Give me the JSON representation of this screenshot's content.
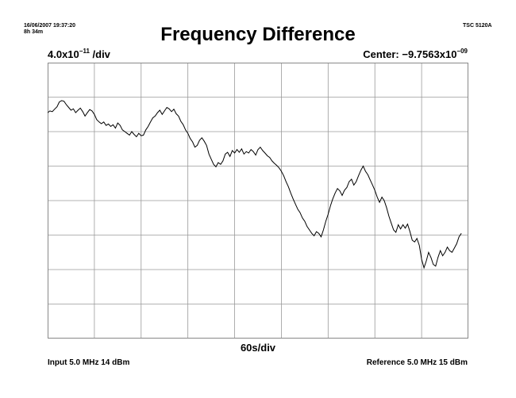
{
  "header": {
    "timestamp": "16/06/2007 19:37:20",
    "elapsed": "8h 34m",
    "instrument": "TSC 5120A",
    "title": "Frequency Difference"
  },
  "scale": {
    "per_div_mantissa": "4.0x10",
    "per_div_exponent": "−11",
    "per_div_unit": " /div",
    "center_prefix": "Center: ",
    "center_mantissa": "−9.7563x10",
    "center_exponent": "−09"
  },
  "footer": {
    "x_scale": "60s/div",
    "input": "Input 5.0 MHz 14 dBm",
    "reference": "Reference 5.0 MHz 15 dBm"
  },
  "chart_data": {
    "type": "line",
    "title": "Frequency Difference",
    "x_unit": "s",
    "x_per_div": 60,
    "x_divisions": 9,
    "xlim": [
      0,
      540
    ],
    "y_per_div": 4e-11,
    "y_center": -9.7563e-09,
    "y_divisions": 8,
    "grid": true,
    "series": [
      {
        "values_y_div": [
          [
            0,
            2.55
          ],
          [
            3,
            2.6
          ],
          [
            6,
            2.58
          ],
          [
            9,
            2.65
          ],
          [
            12,
            2.72
          ],
          [
            15,
            2.86
          ],
          [
            18,
            2.9
          ],
          [
            21,
            2.88
          ],
          [
            24,
            2.78
          ],
          [
            27,
            2.7
          ],
          [
            30,
            2.62
          ],
          [
            33,
            2.66
          ],
          [
            36,
            2.55
          ],
          [
            39,
            2.62
          ],
          [
            42,
            2.68
          ],
          [
            45,
            2.58
          ],
          [
            48,
            2.45
          ],
          [
            51,
            2.55
          ],
          [
            54,
            2.64
          ],
          [
            57,
            2.6
          ],
          [
            60,
            2.5
          ],
          [
            63,
            2.35
          ],
          [
            66,
            2.28
          ],
          [
            69,
            2.23
          ],
          [
            72,
            2.28
          ],
          [
            75,
            2.18
          ],
          [
            78,
            2.22
          ],
          [
            81,
            2.15
          ],
          [
            84,
            2.2
          ],
          [
            87,
            2.1
          ],
          [
            90,
            2.25
          ],
          [
            93,
            2.18
          ],
          [
            96,
            2.05
          ],
          [
            99,
            2.0
          ],
          [
            102,
            1.95
          ],
          [
            105,
            1.9
          ],
          [
            108,
            2.0
          ],
          [
            111,
            1.92
          ],
          [
            114,
            1.85
          ],
          [
            117,
            1.95
          ],
          [
            120,
            1.88
          ],
          [
            123,
            1.9
          ],
          [
            126,
            2.05
          ],
          [
            129,
            2.15
          ],
          [
            132,
            2.28
          ],
          [
            135,
            2.4
          ],
          [
            138,
            2.45
          ],
          [
            141,
            2.55
          ],
          [
            144,
            2.62
          ],
          [
            147,
            2.5
          ],
          [
            150,
            2.6
          ],
          [
            153,
            2.7
          ],
          [
            156,
            2.66
          ],
          [
            159,
            2.58
          ],
          [
            162,
            2.65
          ],
          [
            165,
            2.52
          ],
          [
            168,
            2.45
          ],
          [
            171,
            2.3
          ],
          [
            174,
            2.2
          ],
          [
            177,
            2.05
          ],
          [
            180,
            1.95
          ],
          [
            183,
            1.8
          ],
          [
            186,
            1.7
          ],
          [
            189,
            1.55
          ],
          [
            192,
            1.6
          ],
          [
            195,
            1.75
          ],
          [
            198,
            1.82
          ],
          [
            201,
            1.72
          ],
          [
            204,
            1.6
          ],
          [
            207,
            1.35
          ],
          [
            210,
            1.2
          ],
          [
            213,
            1.05
          ],
          [
            216,
            0.98
          ],
          [
            219,
            1.1
          ],
          [
            222,
            1.05
          ],
          [
            225,
            1.15
          ],
          [
            228,
            1.35
          ],
          [
            231,
            1.4
          ],
          [
            234,
            1.28
          ],
          [
            237,
            1.45
          ],
          [
            240,
            1.38
          ],
          [
            243,
            1.48
          ],
          [
            246,
            1.4
          ],
          [
            249,
            1.5
          ],
          [
            252,
            1.35
          ],
          [
            255,
            1.42
          ],
          [
            258,
            1.38
          ],
          [
            261,
            1.48
          ],
          [
            264,
            1.42
          ],
          [
            267,
            1.32
          ],
          [
            270,
            1.48
          ],
          [
            273,
            1.55
          ],
          [
            276,
            1.45
          ],
          [
            279,
            1.38
          ],
          [
            282,
            1.3
          ],
          [
            285,
            1.25
          ],
          [
            288,
            1.15
          ],
          [
            291,
            1.08
          ],
          [
            294,
            1.02
          ],
          [
            297,
            0.95
          ],
          [
            300,
            0.85
          ],
          [
            303,
            0.72
          ],
          [
            306,
            0.55
          ],
          [
            309,
            0.4
          ],
          [
            312,
            0.22
          ],
          [
            315,
            0.05
          ],
          [
            318,
            -0.1
          ],
          [
            321,
            -0.25
          ],
          [
            324,
            -0.35
          ],
          [
            327,
            -0.5
          ],
          [
            330,
            -0.6
          ],
          [
            333,
            -0.75
          ],
          [
            336,
            -0.85
          ],
          [
            339,
            -0.95
          ],
          [
            342,
            -1.02
          ],
          [
            345,
            -0.9
          ],
          [
            348,
            -0.95
          ],
          [
            351,
            -1.05
          ],
          [
            354,
            -0.85
          ],
          [
            357,
            -0.6
          ],
          [
            360,
            -0.4
          ],
          [
            363,
            -0.15
          ],
          [
            366,
            0.05
          ],
          [
            369,
            0.22
          ],
          [
            372,
            0.35
          ],
          [
            375,
            0.28
          ],
          [
            378,
            0.15
          ],
          [
            381,
            0.3
          ],
          [
            384,
            0.38
          ],
          [
            387,
            0.55
          ],
          [
            390,
            0.62
          ],
          [
            393,
            0.45
          ],
          [
            396,
            0.55
          ],
          [
            399,
            0.72
          ],
          [
            402,
            0.88
          ],
          [
            405,
            1.0
          ],
          [
            408,
            0.85
          ],
          [
            411,
            0.75
          ],
          [
            414,
            0.6
          ],
          [
            417,
            0.45
          ],
          [
            420,
            0.3
          ],
          [
            423,
            0.1
          ],
          [
            426,
            -0.05
          ],
          [
            429,
            0.1
          ],
          [
            432,
            0.0
          ],
          [
            435,
            -0.2
          ],
          [
            438,
            -0.45
          ],
          [
            441,
            -0.65
          ],
          [
            444,
            -0.85
          ],
          [
            447,
            -0.92
          ],
          [
            450,
            -0.7
          ],
          [
            453,
            -0.82
          ],
          [
            456,
            -0.7
          ],
          [
            459,
            -0.8
          ],
          [
            462,
            -0.68
          ],
          [
            465,
            -0.9
          ],
          [
            468,
            -1.15
          ],
          [
            471,
            -1.2
          ],
          [
            474,
            -1.1
          ],
          [
            477,
            -1.3
          ],
          [
            480,
            -1.7
          ],
          [
            483,
            -1.95
          ],
          [
            486,
            -1.75
          ],
          [
            489,
            -1.5
          ],
          [
            492,
            -1.65
          ],
          [
            495,
            -1.85
          ],
          [
            498,
            -1.9
          ],
          [
            501,
            -1.65
          ],
          [
            504,
            -1.45
          ],
          [
            507,
            -1.6
          ],
          [
            510,
            -1.5
          ],
          [
            513,
            -1.35
          ],
          [
            516,
            -1.45
          ],
          [
            519,
            -1.5
          ],
          [
            522,
            -1.38
          ],
          [
            525,
            -1.25
          ],
          [
            528,
            -1.05
          ],
          [
            531,
            -0.95
          ]
        ]
      }
    ]
  }
}
